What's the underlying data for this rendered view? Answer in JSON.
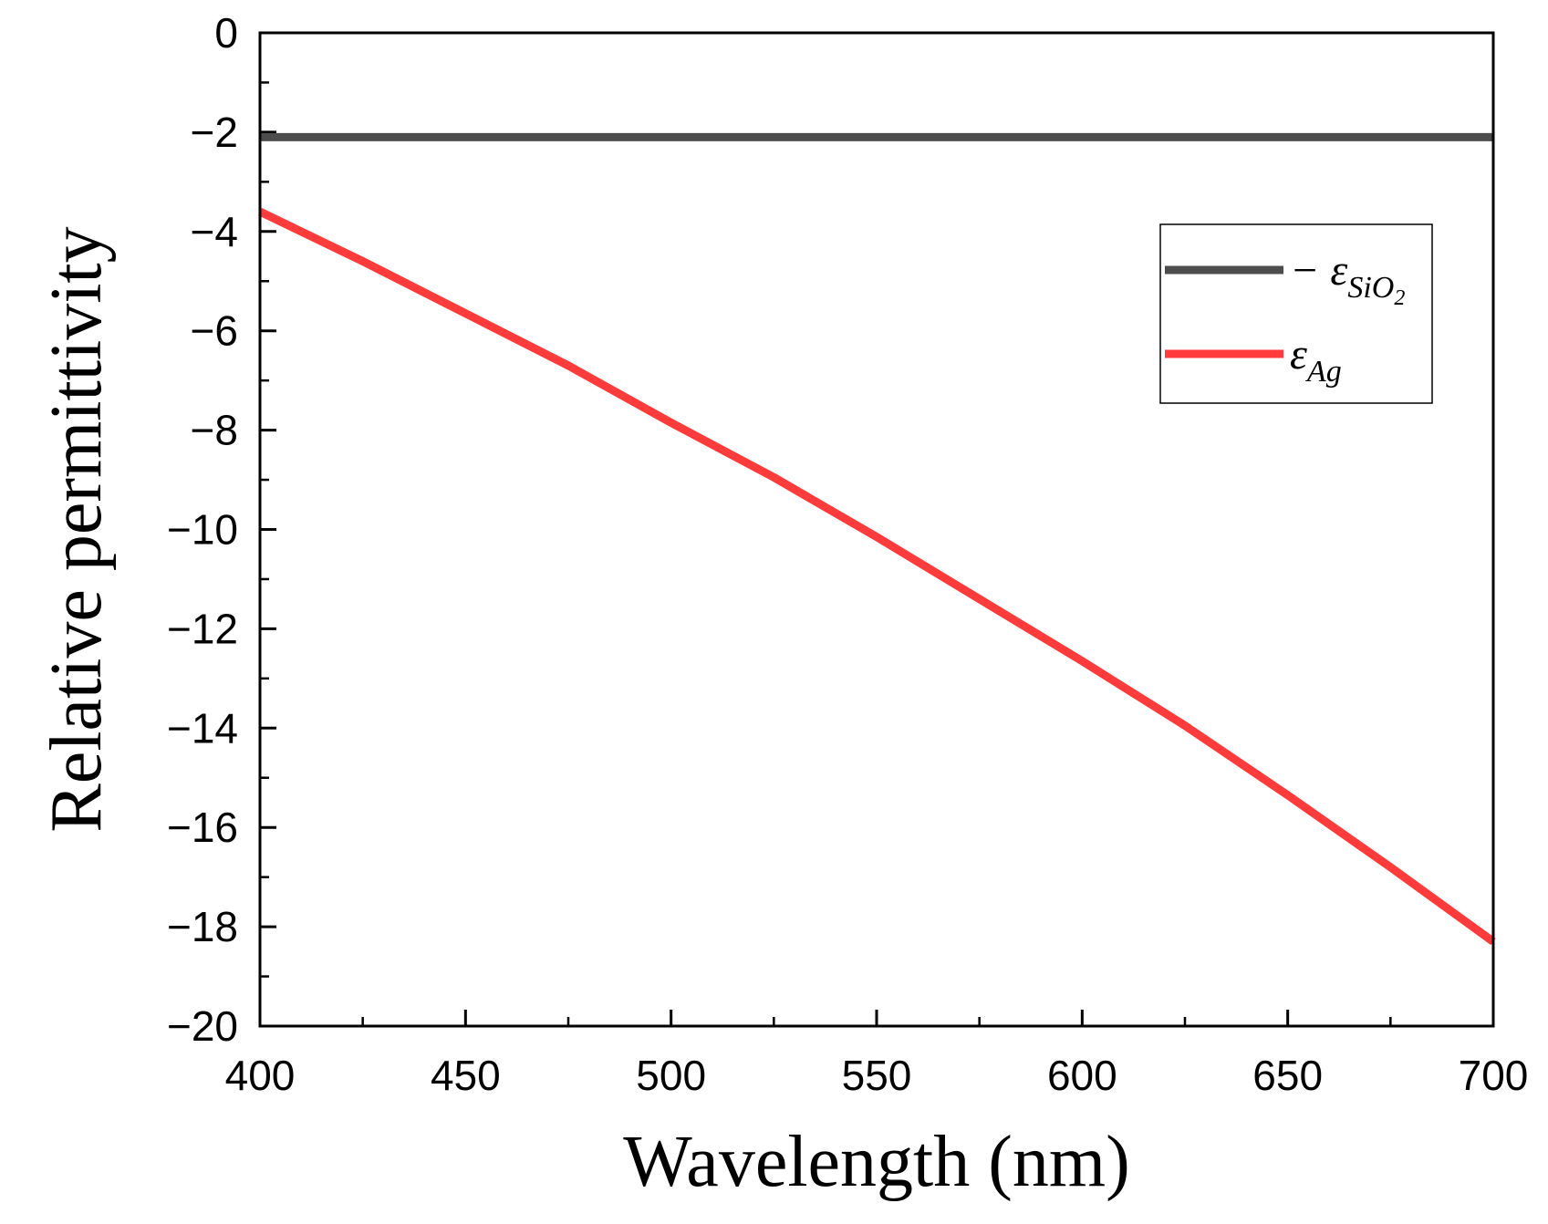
{
  "chart_data": {
    "type": "line",
    "title": "",
    "xlabel": "Wavelength (nm)",
    "ylabel": "Relative permittivity",
    "xlim": [
      400,
      700
    ],
    "ylim": [
      -20,
      0
    ],
    "xticks": [
      400,
      450,
      500,
      550,
      600,
      650,
      700
    ],
    "yticks": [
      0,
      -2,
      -4,
      -6,
      -8,
      -10,
      -12,
      -14,
      -16,
      -18,
      -20
    ],
    "xtick_labels": [
      "400",
      "450",
      "500",
      "550",
      "600",
      "650",
      "700"
    ],
    "ytick_labels": [
      "0",
      "−2",
      "−4",
      "−6",
      "−8",
      "−10",
      "−12",
      "−14",
      "−16",
      "−18",
      "−20"
    ],
    "x_minor_step": 25,
    "y_minor_step": 1,
    "grid": false,
    "legend_position": "upper-right",
    "series": [
      {
        "name": "−εSiO2",
        "legend_prefix": "− ε",
        "legend_sub_main": "SiO",
        "legend_sub_sub": "2",
        "color": "#4d4d4d",
        "x": [
          400,
          700
        ],
        "y": [
          -2.1,
          -2.1
        ]
      },
      {
        "name": "εAg",
        "legend_prefix": "ε",
        "legend_sub_main": "Ag",
        "legend_sub_sub": "",
        "color": "#ff3b3b",
        "x": [
          400,
          425,
          450,
          475,
          500,
          525,
          550,
          575,
          600,
          625,
          650,
          675,
          700
        ],
        "y": [
          -3.6,
          -4.6,
          -5.65,
          -6.7,
          -7.85,
          -8.95,
          -10.15,
          -11.4,
          -12.65,
          -13.95,
          -15.35,
          -16.8,
          -18.3
        ]
      }
    ]
  }
}
